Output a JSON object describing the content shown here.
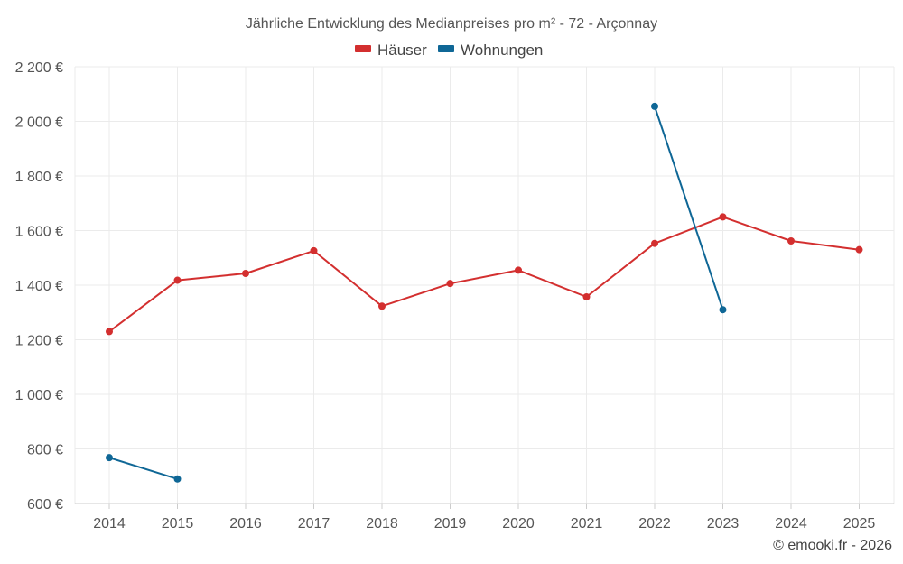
{
  "chart_data": {
    "type": "line",
    "title": "Jährliche Entwicklung des Medianpreises pro m² - 72 - Arçonnay",
    "categories": [
      "2014",
      "2015",
      "2016",
      "2017",
      "2018",
      "2019",
      "2020",
      "2021",
      "2022",
      "2023",
      "2024",
      "2025"
    ],
    "ylim": [
      600,
      2200
    ],
    "yticks": [
      600,
      800,
      1000,
      1200,
      1400,
      1600,
      1800,
      2000,
      2200
    ],
    "ytick_labels": [
      "600 €",
      "800 €",
      "1 000 €",
      "1 200 €",
      "1 400 €",
      "1 600 €",
      "1 800 €",
      "2 000 €",
      "2 200 €"
    ],
    "xlabel": "",
    "ylabel": "",
    "grid": true,
    "legend_position": "top-center",
    "series": [
      {
        "name": "Häuser",
        "color": "#d32f2f",
        "values": [
          1230,
          1418,
          1443,
          1526,
          1323,
          1406,
          1455,
          1357,
          1553,
          1650,
          1562,
          1530
        ]
      },
      {
        "name": "Wohnungen",
        "color": "#0f6796",
        "values": [
          768,
          690,
          null,
          null,
          null,
          null,
          null,
          null,
          2055,
          1310,
          null,
          null
        ]
      }
    ]
  },
  "credit": "© emooki.fr - 2026"
}
